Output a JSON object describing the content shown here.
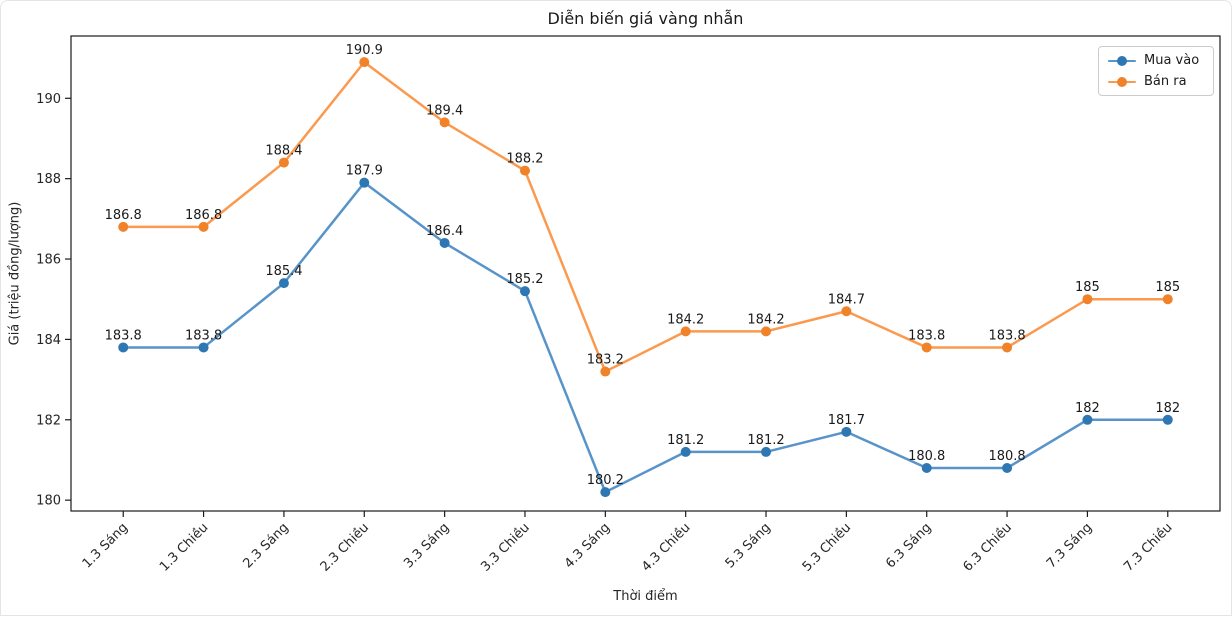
{
  "window": {
    "background": "#ffffff",
    "frame_border_color": "#e4e4e4"
  },
  "chart_data": {
    "type": "line",
    "title": "Diễn biến giá vàng nhẫn",
    "xlabel": "Thời điểm",
    "ylabel": "Giá (triệu đồng/lượng)",
    "categories": [
      "1.3 Sáng",
      "1.3 Chiều",
      "2.3 Sáng",
      "2.3 Chiều",
      "3.3 Sáng",
      "3.3 Chiều",
      "4.3 Sáng",
      "4.3 Chiều",
      "5.3 Sáng",
      "5.3 Chiều",
      "6.3 Sáng",
      "6.3 Chiều",
      "7.3 Sáng",
      "7.3 Chiều"
    ],
    "series": [
      {
        "name": "Mua vào",
        "line_color": "#5894c9",
        "marker_color": "#2f77b2",
        "values": [
          183.8,
          183.8,
          185.4,
          187.9,
          186.4,
          185.2,
          180.2,
          181.2,
          181.2,
          181.7,
          180.8,
          180.8,
          182,
          182
        ]
      },
      {
        "name": "Bán ra",
        "line_color": "#fb9a4f",
        "marker_color": "#f08229",
        "values": [
          186.8,
          186.8,
          188.4,
          190.9,
          189.4,
          188.2,
          183.2,
          184.2,
          184.2,
          184.7,
          183.8,
          183.8,
          185,
          185
        ]
      }
    ],
    "yticks": [
      180,
      182,
      184,
      186,
      188,
      190
    ],
    "ylim": [
      179.73,
      191.55
    ],
    "x_margin": 0.65,
    "grid": false,
    "legend_position": "top-right",
    "data_labels": true,
    "axis_color": "#1a1a1a",
    "tick_label_color": "#262626",
    "data_label_color": "#1a1a1a"
  }
}
